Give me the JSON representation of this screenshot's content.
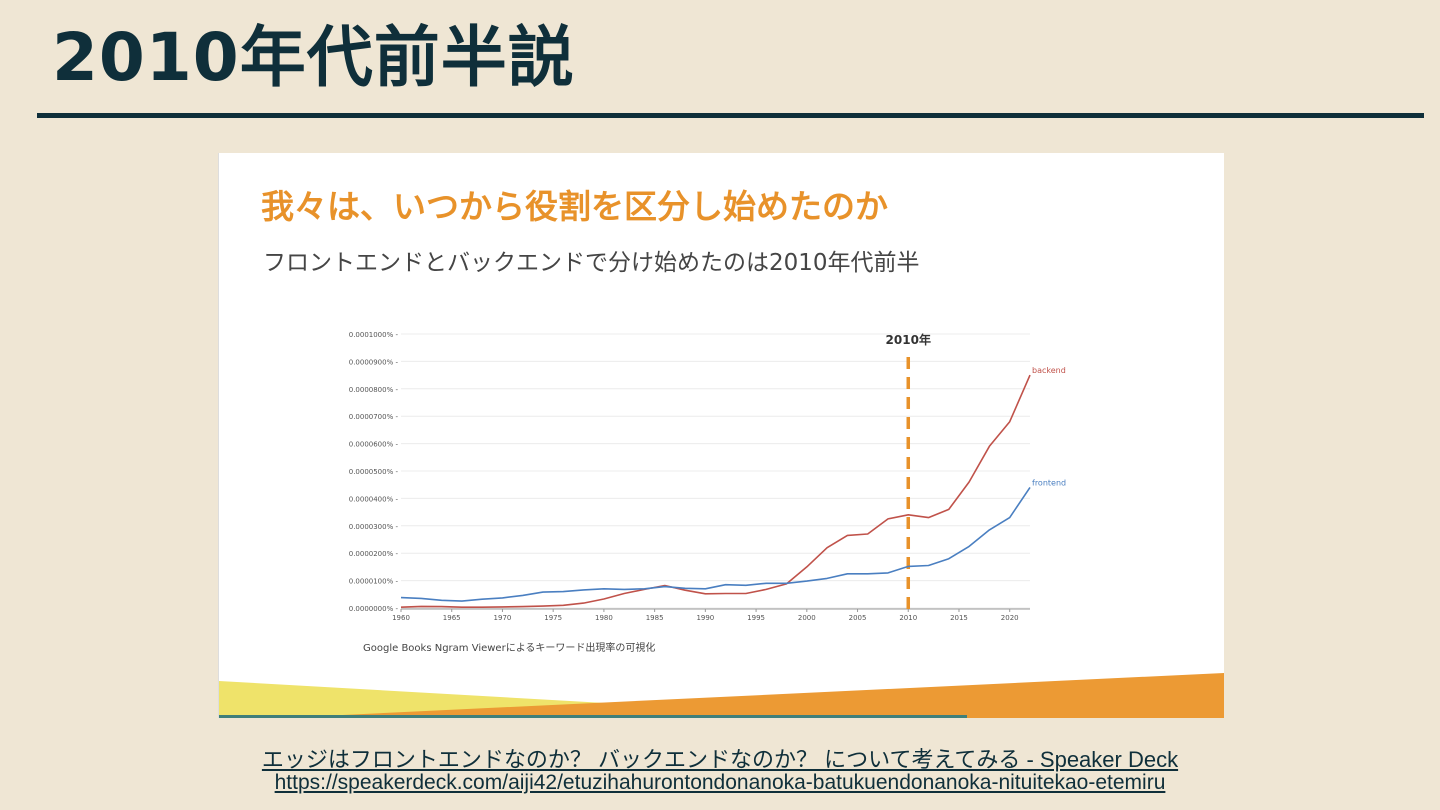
{
  "page": {
    "heading": "2010年代前半説"
  },
  "slide": {
    "title": "我々は、いつから役割を区分し始めたのか",
    "subtitle": "フロントエンドとバックエンドで分け始めたのは2010年代前半",
    "caption": "Google Books Ngram Viewerによるキーワード出現率の可視化",
    "marker_label": "2010年"
  },
  "links": {
    "title": "エッジはフロントエンドなのか？ バックエンドなのか？ について考えてみる - Speaker Deck",
    "url": "https://speakerdeck.com/aiji42/etuzihahurontondonanoka-batukuendonanoka-nituitekao-etemiru"
  },
  "colors": {
    "accent_orange": "#e8922a",
    "backend": "#c0524a",
    "frontend": "#4a7fc1",
    "navy": "#0f2f3a",
    "yellow": "#efe36a"
  },
  "chart_data": {
    "type": "line",
    "title": "",
    "xlabel": "",
    "ylabel": "",
    "xlim": [
      1960,
      2022
    ],
    "ylim": [
      0,
      1e-06
    ],
    "yticks": [
      {
        "v": 1e-06,
        "label": "0.0001000%"
      },
      {
        "v": 9e-07,
        "label": "0.0000900%"
      },
      {
        "v": 8e-07,
        "label": "0.0000800%"
      },
      {
        "v": 7e-07,
        "label": "0.0000700%"
      },
      {
        "v": 6e-07,
        "label": "0.0000600%"
      },
      {
        "v": 5e-07,
        "label": "0.0000500%"
      },
      {
        "v": 4e-07,
        "label": "0.0000400%"
      },
      {
        "v": 3e-07,
        "label": "0.0000300%"
      },
      {
        "v": 2e-07,
        "label": "0.0000200%"
      },
      {
        "v": 1e-07,
        "label": "0.0000100%"
      },
      {
        "v": 0,
        "label": "0.0000000%"
      }
    ],
    "xticks": [
      "1960",
      "1965",
      "1970",
      "1975",
      "1980",
      "1985",
      "1990",
      "1995",
      "2000",
      "2005",
      "2010",
      "2015",
      "2020"
    ],
    "grid": true,
    "vline": {
      "x": 2010,
      "label": "2010年"
    },
    "series": [
      {
        "name": "backend",
        "x": [
          1960,
          1962,
          1964,
          1966,
          1968,
          1970,
          1972,
          1974,
          1976,
          1978,
          1980,
          1982,
          1984,
          1986,
          1988,
          1990,
          1992,
          1994,
          1996,
          1998,
          2000,
          2002,
          2004,
          2006,
          2008,
          2010,
          2012,
          2014,
          2016,
          2018,
          2020,
          2022
        ],
        "values": [
          3e-09,
          6e-09,
          5e-09,
          3e-09,
          3e-09,
          4e-09,
          5e-09,
          7e-09,
          1e-08,
          1.8e-08,
          3.3e-08,
          5.3e-08,
          6.8e-08,
          8.2e-08,
          6.5e-08,
          5.2e-08,
          5.3e-08,
          5.3e-08,
          6.8e-08,
          8.8e-08,
          1.5e-07,
          2.2e-07,
          2.65e-07,
          2.7e-07,
          3.25e-07,
          3.4e-07,
          3.3e-07,
          3.6e-07,
          4.6e-07,
          5.9e-07,
          6.8e-07,
          8.5e-07
        ]
      },
      {
        "name": "frontend",
        "x": [
          1960,
          1962,
          1964,
          1966,
          1968,
          1970,
          1972,
          1974,
          1976,
          1978,
          1980,
          1982,
          1984,
          1986,
          1988,
          1990,
          1992,
          1994,
          1996,
          1998,
          2000,
          2002,
          2004,
          2006,
          2008,
          2010,
          2012,
          2014,
          2016,
          2018,
          2020,
          2022
        ],
        "values": [
          3.8e-08,
          3.5e-08,
          2.8e-08,
          2.5e-08,
          3.2e-08,
          3.7e-08,
          4.6e-08,
          5.8e-08,
          6e-08,
          6.6e-08,
          7e-08,
          6.8e-08,
          7e-08,
          7.8e-08,
          7.2e-08,
          7e-08,
          8.5e-08,
          8.3e-08,
          9e-08,
          9e-08,
          9.8e-08,
          1.08e-07,
          1.25e-07,
          1.25e-07,
          1.28e-07,
          1.52e-07,
          1.55e-07,
          1.8e-07,
          2.25e-07,
          2.85e-07,
          3.3e-07,
          4.4e-07
        ]
      }
    ]
  }
}
